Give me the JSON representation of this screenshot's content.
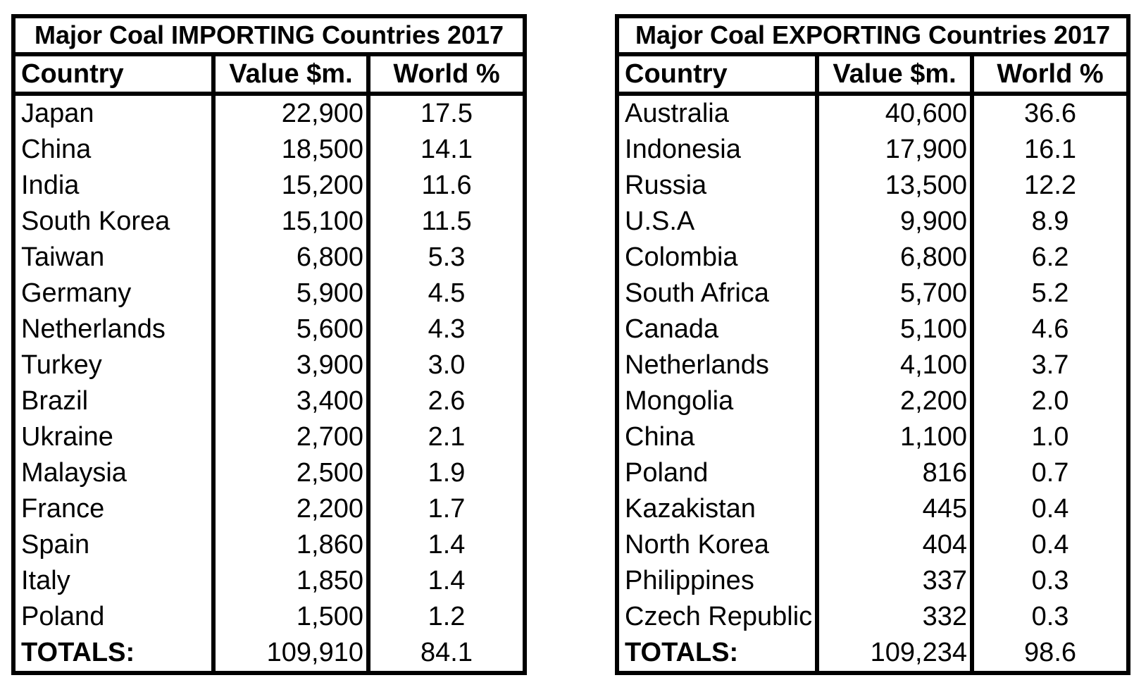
{
  "tables": [
    {
      "title": "Major Coal IMPORTING Countries 2017",
      "columns": [
        "Country",
        "Value $m.",
        "World %"
      ],
      "rows": [
        [
          "Japan",
          "22,900",
          "17.5"
        ],
        [
          "China",
          "18,500",
          "14.1"
        ],
        [
          "India",
          "15,200",
          "11.6"
        ],
        [
          "South Korea",
          "15,100",
          "11.5"
        ],
        [
          "Taiwan",
          "6,800",
          "5.3"
        ],
        [
          "Germany",
          "5,900",
          "4.5"
        ],
        [
          "Netherlands",
          "5,600",
          "4.3"
        ],
        [
          "Turkey",
          "3,900",
          "3.0"
        ],
        [
          "Brazil",
          "3,400",
          "2.6"
        ],
        [
          "Ukraine",
          "2,700",
          "2.1"
        ],
        [
          "Malaysia",
          "2,500",
          "1.9"
        ],
        [
          "France",
          "2,200",
          "1.7"
        ],
        [
          "Spain",
          "1,860",
          "1.4"
        ],
        [
          "Italy",
          "1,850",
          "1.4"
        ],
        [
          "Poland",
          "1,500",
          "1.2"
        ]
      ],
      "totals": [
        "TOTALS:",
        "109,910",
        "84.1"
      ]
    },
    {
      "title": "Major Coal EXPORTING Countries 2017",
      "columns": [
        "Country",
        "Value $m.",
        "World %"
      ],
      "rows": [
        [
          "Australia",
          "40,600",
          "36.6"
        ],
        [
          "Indonesia",
          "17,900",
          "16.1"
        ],
        [
          "Russia",
          "13,500",
          "12.2"
        ],
        [
          "U.S.A",
          "9,900",
          "8.9"
        ],
        [
          "Colombia",
          "6,800",
          "6.2"
        ],
        [
          "South Africa",
          "5,700",
          "5.2"
        ],
        [
          "Canada",
          "5,100",
          "4.6"
        ],
        [
          "Netherlands",
          "4,100",
          "3.7"
        ],
        [
          "Mongolia",
          "2,200",
          "2.0"
        ],
        [
          "China",
          "1,100",
          "1.0"
        ],
        [
          "Poland",
          "816",
          "0.7"
        ],
        [
          "Kazakistan",
          "445",
          "0.4"
        ],
        [
          "North Korea",
          "404",
          "0.4"
        ],
        [
          "Philippines",
          "337",
          "0.3"
        ],
        [
          "Czech Republic",
          "332",
          "0.3"
        ]
      ],
      "totals": [
        "TOTALS:",
        "109,234",
        "98.6"
      ]
    }
  ],
  "chart_data": [
    {
      "type": "table",
      "title": "Major Coal IMPORTING Countries 2017",
      "columns": [
        "Country",
        "Value $m.",
        "World %"
      ],
      "rows": [
        {
          "country": "Japan",
          "value_m": 22900,
          "world_pct": 17.5
        },
        {
          "country": "China",
          "value_m": 18500,
          "world_pct": 14.1
        },
        {
          "country": "India",
          "value_m": 15200,
          "world_pct": 11.6
        },
        {
          "country": "South Korea",
          "value_m": 15100,
          "world_pct": 11.5
        },
        {
          "country": "Taiwan",
          "value_m": 6800,
          "world_pct": 5.3
        },
        {
          "country": "Germany",
          "value_m": 5900,
          "world_pct": 4.5
        },
        {
          "country": "Netherlands",
          "value_m": 5600,
          "world_pct": 4.3
        },
        {
          "country": "Turkey",
          "value_m": 3900,
          "world_pct": 3.0
        },
        {
          "country": "Brazil",
          "value_m": 3400,
          "world_pct": 2.6
        },
        {
          "country": "Ukraine",
          "value_m": 2700,
          "world_pct": 2.1
        },
        {
          "country": "Malaysia",
          "value_m": 2500,
          "world_pct": 1.9
        },
        {
          "country": "France",
          "value_m": 2200,
          "world_pct": 1.7
        },
        {
          "country": "Spain",
          "value_m": 1860,
          "world_pct": 1.4
        },
        {
          "country": "Italy",
          "value_m": 1850,
          "world_pct": 1.4
        },
        {
          "country": "Poland",
          "value_m": 1500,
          "world_pct": 1.2
        }
      ],
      "totals": {
        "label": "TOTALS:",
        "value_m": 109910,
        "world_pct": 84.1
      }
    },
    {
      "type": "table",
      "title": "Major Coal EXPORTING Countries 2017",
      "columns": [
        "Country",
        "Value $m.",
        "World %"
      ],
      "rows": [
        {
          "country": "Australia",
          "value_m": 40600,
          "world_pct": 36.6
        },
        {
          "country": "Indonesia",
          "value_m": 17900,
          "world_pct": 16.1
        },
        {
          "country": "Russia",
          "value_m": 13500,
          "world_pct": 12.2
        },
        {
          "country": "U.S.A",
          "value_m": 9900,
          "world_pct": 8.9
        },
        {
          "country": "Colombia",
          "value_m": 6800,
          "world_pct": 6.2
        },
        {
          "country": "South Africa",
          "value_m": 5700,
          "world_pct": 5.2
        },
        {
          "country": "Canada",
          "value_m": 5100,
          "world_pct": 4.6
        },
        {
          "country": "Netherlands",
          "value_m": 4100,
          "world_pct": 3.7
        },
        {
          "country": "Mongolia",
          "value_m": 2200,
          "world_pct": 2.0
        },
        {
          "country": "China",
          "value_m": 1100,
          "world_pct": 1.0
        },
        {
          "country": "Poland",
          "value_m": 816,
          "world_pct": 0.7
        },
        {
          "country": "Kazakistan",
          "value_m": 445,
          "world_pct": 0.4
        },
        {
          "country": "North Korea",
          "value_m": 404,
          "world_pct": 0.4
        },
        {
          "country": "Philippines",
          "value_m": 337,
          "world_pct": 0.3
        },
        {
          "country": "Czech Republic",
          "value_m": 332,
          "world_pct": 0.3
        }
      ],
      "totals": {
        "label": "TOTALS:",
        "value_m": 109234,
        "world_pct": 98.6
      }
    }
  ],
  "colors": {
    "border": "#000000",
    "text": "#000000",
    "background": "#ffffff"
  }
}
